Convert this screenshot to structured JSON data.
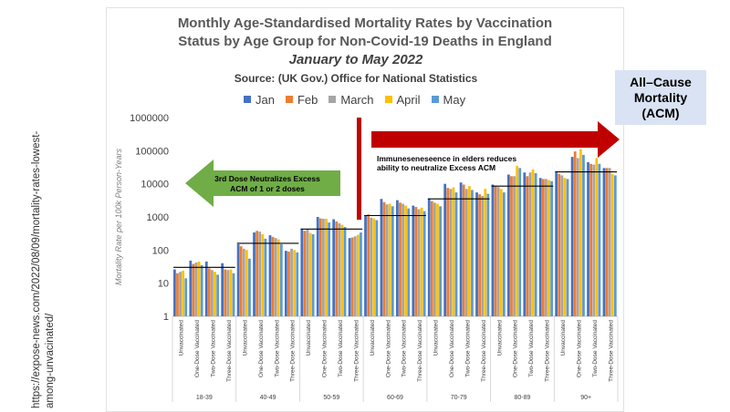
{
  "source_url": "https://expose-news.com/2022/08/09/mortality-rates-lowest-among-unvacinated/",
  "title_lines": [
    "Monthly Age-Standardised Mortality Rates by Vaccination",
    "Status by Age Group for Non-Covid-19 Deaths in England"
  ],
  "title_period": "January to May 2022",
  "source_line": "Source: (UK Gov.) Office for National Statistics",
  "acm_box": [
    "All–Cause",
    "Mortality",
    "(ACM)"
  ],
  "annotations": {
    "green_arrow": [
      "3rd Dose Neutralizes Excess",
      "ACM of 1 or 2 doses"
    ],
    "red_arrow": [
      "Immuneseneseence  in elders reduces",
      "ability to neutralize  Excess  ACM"
    ]
  },
  "colors": {
    "Jan": "#4472c4",
    "Feb": "#ed7d31",
    "March": "#a5a5a5",
    "April": "#ffc000",
    "May": "#5b9bd5",
    "green_arrow": "#70ad47",
    "red_arrow": "#c00000"
  },
  "chart_data": {
    "type": "bar",
    "ylabel": "Mortality Rate per 100k Person-Years",
    "yscale": "log",
    "ylim": [
      1,
      1000000
    ],
    "yticks": [
      "1",
      "10",
      "100",
      "1000",
      "10000",
      "100000",
      "1000000"
    ],
    "legend": [
      "Jan",
      "Feb",
      "March",
      "April",
      "May"
    ],
    "legend_position": "top",
    "age_groups": [
      "18-39",
      "40-49",
      "50-59",
      "60-69",
      "70-79",
      "80-89",
      "90+"
    ],
    "statuses": [
      "Unvaccinated",
      "One-Dose Vaccinated",
      "Two-Dose Vaccinated",
      "Three-Dose Vaccinated"
    ],
    "series": [
      {
        "name": "Jan",
        "values": [
          [
            26,
            48,
            45,
            40
          ],
          [
            150,
            340,
            280,
            95
          ],
          [
            420,
            1000,
            850,
            230
          ],
          [
            1100,
            3500,
            3200,
            2200
          ],
          [
            3600,
            10000,
            11000,
            5500
          ],
          [
            9500,
            19000,
            22000,
            15000
          ],
          [
            22000,
            65000,
            45000,
            30000
          ]
        ]
      },
      {
        "name": "Feb",
        "values": [
          [
            20,
            38,
            28,
            26
          ],
          [
            130,
            380,
            250,
            90
          ],
          [
            380,
            900,
            730,
            240
          ],
          [
            1200,
            2800,
            2700,
            2000
          ],
          [
            3000,
            7500,
            9500,
            4800
          ],
          [
            8500,
            17000,
            17000,
            14000
          ],
          [
            20000,
            95000,
            40000,
            30000
          ]
        ]
      },
      {
        "name": "March",
        "values": [
          [
            22,
            42,
            25,
            25
          ],
          [
            110,
            360,
            230,
            110
          ],
          [
            420,
            880,
            640,
            260
          ],
          [
            950,
            2400,
            2500,
            1700
          ],
          [
            2700,
            7000,
            7000,
            4300
          ],
          [
            8000,
            17000,
            22000,
            14000
          ],
          [
            18000,
            60000,
            38000,
            30000
          ]
        ]
      },
      {
        "name": "April",
        "values": [
          [
            24,
            45,
            22,
            26
          ],
          [
            100,
            300,
            210,
            100
          ],
          [
            330,
            880,
            580,
            290
          ],
          [
            900,
            2500,
            2200,
            1900
          ],
          [
            2500,
            7800,
            8500,
            7000
          ],
          [
            7000,
            35000,
            27000,
            13000
          ],
          [
            15000,
            110000,
            60000,
            20000
          ]
        ]
      },
      {
        "name": "May",
        "values": [
          [
            14,
            35,
            18,
            20
          ],
          [
            55,
            220,
            150,
            85
          ],
          [
            300,
            680,
            500,
            340
          ],
          [
            800,
            2100,
            1800,
            1500
          ],
          [
            2100,
            5500,
            6500,
            5000
          ],
          [
            5500,
            30000,
            21000,
            12000
          ],
          [
            14000,
            75000,
            40000,
            18000
          ]
        ]
      }
    ],
    "group_reference_lines": [
      30,
      160,
      430,
      1100,
      3500,
      8500,
      23000
    ]
  }
}
